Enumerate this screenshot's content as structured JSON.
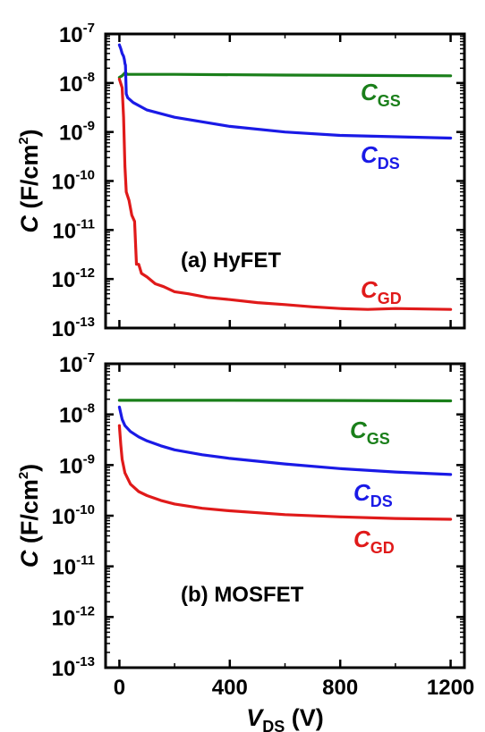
{
  "chart_data": [
    {
      "type": "line",
      "panel_label": "(a) HyFET",
      "y_scale": "log",
      "xlim": [
        -50,
        1250
      ],
      "ylim": [
        1e-13,
        1e-07
      ],
      "y_ticks": [
        -13,
        -12,
        -11,
        -10,
        -9,
        -8,
        -7
      ],
      "y_tick_base": "10",
      "grid": false,
      "series": [
        {
          "name": "C_GS",
          "label_main": "C",
          "label_sub": "GS",
          "color": "#1a7f1a",
          "points": [
            [
              0,
              1.3e-08
            ],
            [
              10,
              1.4e-08
            ],
            [
              20,
              1.6e-08
            ],
            [
              30,
              1.5e-08
            ],
            [
              50,
              1.5e-08
            ],
            [
              200,
              1.5e-08
            ],
            [
              600,
              1.45e-08
            ],
            [
              1000,
              1.42e-08
            ],
            [
              1200,
              1.4e-08
            ]
          ]
        },
        {
          "name": "C_DS",
          "label_main": "C",
          "label_sub": "DS",
          "color": "#1a1ae6",
          "points": [
            [
              0,
              6e-08
            ],
            [
              5,
              5e-08
            ],
            [
              10,
              4e-08
            ],
            [
              15,
              3.5e-08
            ],
            [
              18,
              3e-08
            ],
            [
              20,
              2.5e-08
            ],
            [
              22,
              2.3e-08
            ],
            [
              25,
              6e-09
            ],
            [
              30,
              5e-09
            ],
            [
              50,
              4e-09
            ],
            [
              100,
              2.8e-09
            ],
            [
              200,
              2e-09
            ],
            [
              400,
              1.3e-09
            ],
            [
              600,
              1e-09
            ],
            [
              800,
              8.5e-10
            ],
            [
              1000,
              8e-10
            ],
            [
              1200,
              7.5e-10
            ]
          ]
        },
        {
          "name": "C_GD",
          "label_main": "C",
          "label_sub": "GD",
          "color": "#e01a1a",
          "points": [
            [
              0,
              1.2e-08
            ],
            [
              10,
              8e-09
            ],
            [
              15,
              2e-09
            ],
            [
              20,
              2e-10
            ],
            [
              25,
              6e-11
            ],
            [
              35,
              4e-11
            ],
            [
              45,
              2e-11
            ],
            [
              55,
              1.5e-11
            ],
            [
              62,
              2e-12
            ],
            [
              70,
              2e-12
            ],
            [
              80,
              1.3e-12
            ],
            [
              100,
              1.1e-12
            ],
            [
              130,
              8e-13
            ],
            [
              160,
              7e-13
            ],
            [
              200,
              5.5e-13
            ],
            [
              250,
              5e-13
            ],
            [
              320,
              4.2e-13
            ],
            [
              400,
              3.8e-13
            ],
            [
              500,
              3.3e-13
            ],
            [
              600,
              3e-13
            ],
            [
              700,
              2.7e-13
            ],
            [
              800,
              2.5e-13
            ],
            [
              900,
              2.4e-13
            ],
            [
              1000,
              2.5e-13
            ],
            [
              1200,
              2.4e-13
            ]
          ]
        }
      ]
    },
    {
      "type": "line",
      "panel_label": "(b) MOSFET",
      "y_scale": "log",
      "xlim": [
        -50,
        1250
      ],
      "ylim": [
        1e-13,
        1e-07
      ],
      "y_ticks": [
        -13,
        -12,
        -11,
        -10,
        -9,
        -8,
        -7
      ],
      "y_tick_base": "10",
      "x_ticks": [
        0,
        400,
        800,
        1200
      ],
      "grid": false,
      "series": [
        {
          "name": "C_GS",
          "label_main": "C",
          "label_sub": "GS",
          "color": "#1a7f1a",
          "points": [
            [
              0,
              1.9e-08
            ],
            [
              100,
              1.9e-08
            ],
            [
              400,
              1.9e-08
            ],
            [
              800,
              1.88e-08
            ],
            [
              1200,
              1.85e-08
            ]
          ]
        },
        {
          "name": "C_DS",
          "label_main": "C",
          "label_sub": "DS",
          "color": "#1a1ae6",
          "points": [
            [
              0,
              1.4e-08
            ],
            [
              5,
              1.05e-08
            ],
            [
              10,
              8e-09
            ],
            [
              20,
              6e-09
            ],
            [
              40,
              4.6e-09
            ],
            [
              70,
              3.6e-09
            ],
            [
              100,
              3e-09
            ],
            [
              150,
              2.4e-09
            ],
            [
              200,
              2e-09
            ],
            [
              300,
              1.6e-09
            ],
            [
              400,
              1.35e-09
            ],
            [
              600,
              1.05e-09
            ],
            [
              800,
              8.5e-10
            ],
            [
              1000,
              7.3e-10
            ],
            [
              1200,
              6.5e-10
            ]
          ]
        },
        {
          "name": "C_GD",
          "label_main": "C",
          "label_sub": "GD",
          "color": "#e01a1a",
          "points": [
            [
              0,
              6e-09
            ],
            [
              5,
              2.5e-09
            ],
            [
              10,
              1.3e-09
            ],
            [
              20,
              7e-10
            ],
            [
              40,
              4.2e-10
            ],
            [
              70,
              3e-10
            ],
            [
              100,
              2.5e-10
            ],
            [
              150,
              2e-10
            ],
            [
              200,
              1.7e-10
            ],
            [
              300,
              1.4e-10
            ],
            [
              400,
              1.25e-10
            ],
            [
              600,
              1.05e-10
            ],
            [
              800,
              9.5e-11
            ],
            [
              1000,
              8.8e-11
            ],
            [
              1200,
              8.5e-11
            ]
          ]
        }
      ]
    }
  ],
  "axes": {
    "y_title_main": "C",
    "y_title_unit": " (F/cm",
    "y_title_exp": "2",
    "y_title_close": ")",
    "x_title_main": "V",
    "x_title_sub": "DS",
    "x_title_unit": " (V)"
  }
}
